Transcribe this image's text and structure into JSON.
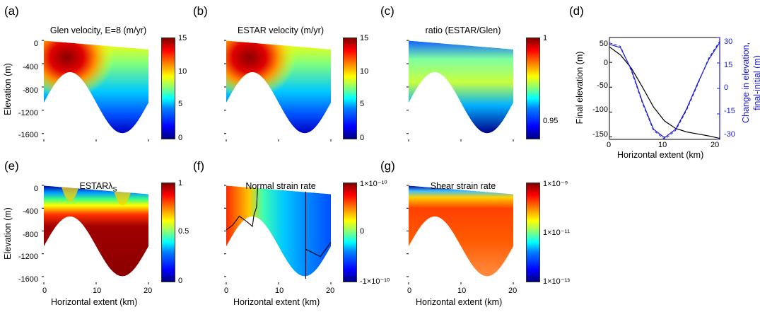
{
  "colors": {
    "black_line": "#000000",
    "blue_line": "#1a1adc"
  },
  "panels": [
    {
      "letter": "(a)",
      "title": "Glen velocity, E=8 (m/yr)",
      "cbar_ticks": [
        "15",
        "10",
        "5",
        "0"
      ],
      "map": "glen"
    },
    {
      "letter": "(b)",
      "title": "ESTAR velocity (m/yr)",
      "cbar_ticks": [
        "15",
        "10",
        "5",
        "0"
      ],
      "map": "glen"
    },
    {
      "letter": "(c)",
      "title": "ratio (ESTAR/Glen)",
      "cbar_ticks": [
        "1",
        "0.95"
      ],
      "map": "ratio"
    },
    {
      "letter": "(d)",
      "title": ""
    },
    {
      "letter": "(e)",
      "title": "ESTAR λS",
      "title_main": "ESTAR",
      "title_sym": "λ",
      "title_sub": "S",
      "cbar_ticks": [
        "1",
        "0.5",
        "0"
      ],
      "map": "lambda"
    },
    {
      "letter": "(f)",
      "title": "Normal strain rate",
      "cbar_ticks": [
        "1×10⁻¹⁰",
        "0",
        "-1×10⁻¹⁰"
      ],
      "cbar_mantissa": [
        "1",
        "0",
        "-1"
      ],
      "map": "normal"
    },
    {
      "letter": "(g)",
      "title": "Shear strain rate",
      "cbar_ticks": [
        "1×10⁻⁹",
        "1×10⁻¹¹",
        "1×10⁻¹³"
      ],
      "map": "shear"
    }
  ],
  "axes_text": {
    "elevation_label": "Elevation (m)",
    "x_label": "Horizontal extent (km)",
    "elev_ticks_top": [
      "0",
      "-400",
      "-800",
      "-1200",
      "-1600"
    ],
    "elev_ticks_bottom": [
      "0",
      "-400",
      "-800",
      "-1200",
      "-1600"
    ],
    "x_ticks": [
      "0",
      "10",
      "20"
    ],
    "d_ylabel_left": "Final elevation (m)",
    "d_ylabel_right_1": "Change in elevation,",
    "d_ylabel_right_2": "final-initial (m)",
    "d_left_ticks": [
      "50",
      "0",
      "-50",
      "-100",
      "-150"
    ],
    "d_right_ticks": [
      "30",
      "15",
      "0",
      "-15",
      "-30"
    ]
  },
  "chart_data": [
    {
      "type": "heatmap",
      "title": "Glen velocity, E=8 (m/yr)",
      "xlabel": "",
      "ylabel": "Elevation (m)",
      "xlim": [
        0,
        20
      ],
      "ylim": [
        -1700,
        50
      ],
      "clim": [
        0,
        15
      ]
    },
    {
      "type": "heatmap",
      "title": "ESTAR velocity (m/yr)",
      "xlabel": "",
      "ylabel": "",
      "xlim": [
        0,
        20
      ],
      "ylim": [
        -1700,
        50
      ],
      "clim": [
        0,
        15
      ]
    },
    {
      "type": "heatmap",
      "title": "ratio (ESTAR/Glen)",
      "xlabel": "",
      "ylabel": "",
      "xlim": [
        0,
        20
      ],
      "ylim": [
        -1700,
        50
      ],
      "clim": [
        0.93,
        1
      ]
    },
    {
      "type": "line",
      "title": "",
      "xlabel": "Horizontal extent (km)",
      "ylabel": "Final elevation (m)",
      "ylabel_right": "Change in elevation, final-initial (m)",
      "xlim": [
        0,
        20
      ],
      "ylim": [
        -155,
        50
      ],
      "ylim_right": [
        -30,
        30
      ],
      "series": [
        {
          "axis": "left",
          "color": "#000000",
          "x": [
            0,
            2,
            4,
            6,
            8,
            10,
            12,
            14,
            16,
            18,
            20
          ],
          "y": [
            31,
            15,
            -12,
            -50,
            -90,
            -118,
            -133,
            -140,
            -144,
            -148,
            -153
          ]
        },
        {
          "axis": "right",
          "color": "#1a1adc",
          "x": [
            0,
            2,
            4,
            6,
            8,
            10,
            12,
            14,
            16,
            18,
            20
          ],
          "y": [
            26,
            24,
            11,
            -8,
            -24,
            -29,
            -24,
            -12,
            3,
            17,
            27
          ]
        }
      ]
    },
    {
      "type": "heatmap",
      "title": "ESTAR λS",
      "xlabel": "Horizontal extent (km)",
      "ylabel": "Elevation (m)",
      "xlim": [
        0,
        20
      ],
      "ylim": [
        -1700,
        50
      ],
      "clim": [
        0,
        1
      ]
    },
    {
      "type": "heatmap",
      "title": "Normal strain rate",
      "xlabel": "Horizontal extent (km)",
      "ylabel": "",
      "xlim": [
        0,
        20
      ],
      "ylim": [
        -1700,
        50
      ],
      "clim": [
        -1e-10,
        1e-10
      ]
    },
    {
      "type": "heatmap",
      "title": "Shear strain rate",
      "xlabel": "Horizontal extent (km)",
      "ylabel": "",
      "xlim": [
        0,
        20
      ],
      "ylim": [
        -1700,
        50
      ],
      "clim": [
        1e-13,
        1e-09
      ]
    }
  ]
}
